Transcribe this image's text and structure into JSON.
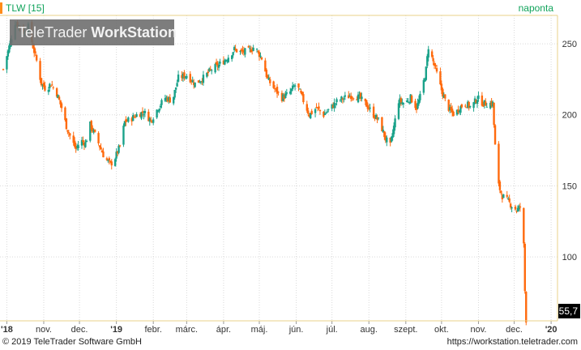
{
  "header": {
    "symbol_label": "TLW [15]",
    "period_label": "naponta",
    "watermark_part1": "TeleTrader ",
    "watermark_part2": "WorkStation"
  },
  "footer": {
    "copyright": "© 2019 TeleTrader Software GmbH",
    "url": "https://workstation.teletrader.com"
  },
  "colors": {
    "up": "#1aa28a",
    "down": "#ff6a0d",
    "accent_green": "#0fa35a",
    "axis_border": "#e8d28a",
    "last_price_bg": "#000000",
    "watermark_bg": "#6f6f6f"
  },
  "chart_data": {
    "type": "candlestick",
    "instrument": "TLW",
    "y_ticks": [
      100,
      150,
      200,
      250
    ],
    "ylim": [
      55,
      270
    ],
    "last_value_label": "55,7",
    "x_tick_labels": [
      "'18",
      "nov.",
      "dec.",
      "'19",
      "febr.",
      "márc.",
      "ápr.",
      "máj.",
      "jún.",
      "júl.",
      "aug.",
      "szept.",
      "okt.",
      "nov.",
      "dec.",
      "'20"
    ],
    "x_tick_dates": [
      "2018-10-01",
      "2018-11-01",
      "2018-12-01",
      "2019-01-01",
      "2019-02-01",
      "2019-03-01",
      "2019-04-01",
      "2019-05-01",
      "2019-06-01",
      "2019-07-01",
      "2019-08-01",
      "2019-09-01",
      "2019-10-01",
      "2019-11-01",
      "2019-12-01",
      "2020-01-01"
    ],
    "bold_tick_labels": [
      "'18",
      "'19",
      "'20"
    ],
    "price_path": [
      [
        "2018-09-28",
        232
      ],
      [
        "2018-10-03",
        248
      ],
      [
        "2018-10-08",
        265
      ],
      [
        "2018-10-12",
        262
      ],
      [
        "2018-10-16",
        258
      ],
      [
        "2018-10-19",
        262
      ],
      [
        "2018-10-23",
        248
      ],
      [
        "2018-10-26",
        238
      ],
      [
        "2018-10-30",
        222
      ],
      [
        "2018-11-03",
        218
      ],
      [
        "2018-11-07",
        222
      ],
      [
        "2018-11-12",
        215
      ],
      [
        "2018-11-16",
        205
      ],
      [
        "2018-11-20",
        192
      ],
      [
        "2018-11-24",
        183
      ],
      [
        "2018-11-28",
        176
      ],
      [
        "2018-12-02",
        182
      ],
      [
        "2018-12-06",
        180
      ],
      [
        "2018-12-10",
        193
      ],
      [
        "2018-12-14",
        186
      ],
      [
        "2018-12-18",
        178
      ],
      [
        "2018-12-22",
        170
      ],
      [
        "2018-12-27",
        165
      ],
      [
        "2018-12-31",
        170
      ],
      [
        "2019-01-04",
        178
      ],
      [
        "2019-01-08",
        195
      ],
      [
        "2019-01-13",
        197
      ],
      [
        "2019-01-18",
        200
      ],
      [
        "2019-01-24",
        202
      ],
      [
        "2019-01-30",
        196
      ],
      [
        "2019-02-05",
        205
      ],
      [
        "2019-02-11",
        212
      ],
      [
        "2019-02-17",
        210
      ],
      [
        "2019-02-22",
        226
      ],
      [
        "2019-03-01",
        228
      ],
      [
        "2019-03-08",
        222
      ],
      [
        "2019-03-15",
        226
      ],
      [
        "2019-03-22",
        232
      ],
      [
        "2019-03-28",
        235
      ],
      [
        "2019-04-04",
        240
      ],
      [
        "2019-04-10",
        246
      ],
      [
        "2019-04-16",
        244
      ],
      [
        "2019-04-22",
        245
      ],
      [
        "2019-04-27",
        248
      ],
      [
        "2019-05-03",
        240
      ],
      [
        "2019-05-08",
        225
      ],
      [
        "2019-05-14",
        218
      ],
      [
        "2019-05-20",
        212
      ],
      [
        "2019-05-26",
        215
      ],
      [
        "2019-06-01",
        222
      ],
      [
        "2019-06-06",
        212
      ],
      [
        "2019-06-12",
        200
      ],
      [
        "2019-06-18",
        205
      ],
      [
        "2019-06-24",
        200
      ],
      [
        "2019-06-30",
        205
      ],
      [
        "2019-07-06",
        210
      ],
      [
        "2019-07-12",
        212
      ],
      [
        "2019-07-18",
        214
      ],
      [
        "2019-07-24",
        212
      ],
      [
        "2019-07-30",
        207
      ],
      [
        "2019-08-05",
        200
      ],
      [
        "2019-08-10",
        195
      ],
      [
        "2019-08-15",
        183
      ],
      [
        "2019-08-19",
        178
      ],
      [
        "2019-08-26",
        210
      ],
      [
        "2019-08-31",
        208
      ],
      [
        "2019-09-05",
        212
      ],
      [
        "2019-09-10",
        205
      ],
      [
        "2019-09-14",
        215
      ],
      [
        "2019-09-18",
        232
      ],
      [
        "2019-09-20",
        248
      ],
      [
        "2019-09-23",
        240
      ],
      [
        "2019-09-26",
        232
      ],
      [
        "2019-09-30",
        220
      ],
      [
        "2019-10-04",
        210
      ],
      [
        "2019-10-08",
        203
      ],
      [
        "2019-10-12",
        200
      ],
      [
        "2019-10-16",
        205
      ],
      [
        "2019-10-21",
        208
      ],
      [
        "2019-10-26",
        205
      ],
      [
        "2019-10-31",
        212
      ],
      [
        "2019-11-05",
        208
      ],
      [
        "2019-11-10",
        208
      ],
      [
        "2019-11-13",
        208
      ],
      [
        "2019-11-15",
        178
      ],
      [
        "2019-11-18",
        150
      ],
      [
        "2019-11-21",
        143
      ],
      [
        "2019-11-25",
        140
      ],
      [
        "2019-11-29",
        136
      ],
      [
        "2019-12-03",
        133
      ],
      [
        "2019-12-06",
        135
      ],
      [
        "2019-12-08",
        140
      ],
      [
        "2019-12-10",
        76
      ],
      [
        "2019-12-11",
        56
      ]
    ]
  }
}
